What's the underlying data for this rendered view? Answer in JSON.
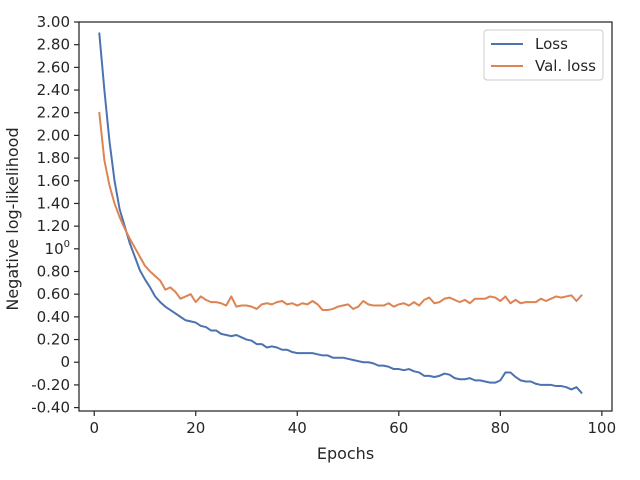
{
  "chart_data": {
    "type": "line",
    "xlabel": "Epochs",
    "ylabel": "Negative log-likelihood",
    "xlim": [
      -3,
      102
    ],
    "ylim": [
      -0.43,
      3.0
    ],
    "xticks": [
      0,
      20,
      40,
      60,
      80,
      100
    ],
    "yticks": [
      {
        "value": 3.0,
        "label": "3.00"
      },
      {
        "value": 2.8,
        "label": "2.80"
      },
      {
        "value": 2.6,
        "label": "2.60"
      },
      {
        "value": 2.4,
        "label": "2.40"
      },
      {
        "value": 2.2,
        "label": "2.20"
      },
      {
        "value": 2.0,
        "label": "2.00"
      },
      {
        "value": 1.8,
        "label": "1.80"
      },
      {
        "value": 1.6,
        "label": "1.60"
      },
      {
        "value": 1.4,
        "label": "1.40"
      },
      {
        "value": 1.2,
        "label": "1.20"
      },
      {
        "value": 1.0,
        "label": "10",
        "sup": "0"
      },
      {
        "value": 0.8,
        "label": "0.80"
      },
      {
        "value": 0.6,
        "label": "0.60"
      },
      {
        "value": 0.4,
        "label": "0.40"
      },
      {
        "value": 0.2,
        "label": "0.20"
      },
      {
        "value": 0.0,
        "label": "0"
      },
      {
        "value": -0.2,
        "label": "-0.20"
      },
      {
        "value": -0.4,
        "label": "-0.40"
      }
    ],
    "grid": false,
    "legend": "top-right",
    "x": [
      1,
      2,
      3,
      4,
      5,
      6,
      7,
      8,
      9,
      10,
      11,
      12,
      13,
      14,
      15,
      16,
      17,
      18,
      19,
      20,
      21,
      22,
      23,
      24,
      25,
      26,
      27,
      28,
      29,
      30,
      31,
      32,
      33,
      34,
      35,
      36,
      37,
      38,
      39,
      40,
      41,
      42,
      43,
      44,
      45,
      46,
      47,
      48,
      49,
      50,
      51,
      52,
      53,
      54,
      55,
      56,
      57,
      58,
      59,
      60,
      61,
      62,
      63,
      64,
      65,
      66,
      67,
      68,
      69,
      70,
      71,
      72,
      73,
      74,
      75,
      76,
      77,
      78,
      79,
      80,
      81,
      82,
      83,
      84,
      85,
      86,
      87,
      88,
      89,
      90,
      91,
      92,
      93,
      94,
      95,
      96
    ],
    "series": [
      {
        "name": "Loss",
        "color": "#4c72b0",
        "values": [
          2.9,
          2.4,
          1.95,
          1.6,
          1.35,
          1.2,
          1.05,
          0.93,
          0.81,
          0.73,
          0.66,
          0.58,
          0.53,
          0.49,
          0.46,
          0.43,
          0.4,
          0.37,
          0.36,
          0.35,
          0.32,
          0.31,
          0.28,
          0.28,
          0.25,
          0.24,
          0.23,
          0.24,
          0.22,
          0.2,
          0.19,
          0.16,
          0.16,
          0.13,
          0.14,
          0.13,
          0.11,
          0.11,
          0.09,
          0.08,
          0.08,
          0.08,
          0.08,
          0.07,
          0.06,
          0.06,
          0.04,
          0.04,
          0.04,
          0.03,
          0.02,
          0.01,
          0.0,
          0.0,
          -0.01,
          -0.03,
          -0.03,
          -0.04,
          -0.06,
          -0.06,
          -0.07,
          -0.06,
          -0.08,
          -0.09,
          -0.12,
          -0.12,
          -0.13,
          -0.12,
          -0.1,
          -0.11,
          -0.14,
          -0.15,
          -0.15,
          -0.14,
          -0.16,
          -0.16,
          -0.17,
          -0.18,
          -0.18,
          -0.16,
          -0.09,
          -0.09,
          -0.13,
          -0.16,
          -0.17,
          -0.17,
          -0.19,
          -0.2,
          -0.2,
          -0.2,
          -0.21,
          -0.21,
          -0.22,
          -0.24,
          -0.22,
          -0.27
        ]
      },
      {
        "name": "Val. loss",
        "color": "#dd8452",
        "values": [
          2.2,
          1.78,
          1.56,
          1.4,
          1.28,
          1.18,
          1.09,
          1.01,
          0.93,
          0.85,
          0.8,
          0.76,
          0.72,
          0.64,
          0.66,
          0.62,
          0.56,
          0.58,
          0.6,
          0.53,
          0.58,
          0.55,
          0.53,
          0.53,
          0.52,
          0.5,
          0.58,
          0.49,
          0.5,
          0.5,
          0.49,
          0.47,
          0.51,
          0.52,
          0.51,
          0.53,
          0.54,
          0.51,
          0.52,
          0.5,
          0.52,
          0.51,
          0.54,
          0.51,
          0.46,
          0.46,
          0.47,
          0.49,
          0.5,
          0.51,
          0.47,
          0.49,
          0.54,
          0.51,
          0.5,
          0.5,
          0.5,
          0.52,
          0.49,
          0.51,
          0.52,
          0.5,
          0.53,
          0.5,
          0.55,
          0.57,
          0.52,
          0.53,
          0.56,
          0.57,
          0.55,
          0.53,
          0.55,
          0.52,
          0.56,
          0.56,
          0.56,
          0.58,
          0.57,
          0.54,
          0.58,
          0.52,
          0.55,
          0.52,
          0.53,
          0.53,
          0.53,
          0.56,
          0.54,
          0.56,
          0.58,
          0.57,
          0.58,
          0.59,
          0.54,
          0.59
        ]
      }
    ]
  }
}
